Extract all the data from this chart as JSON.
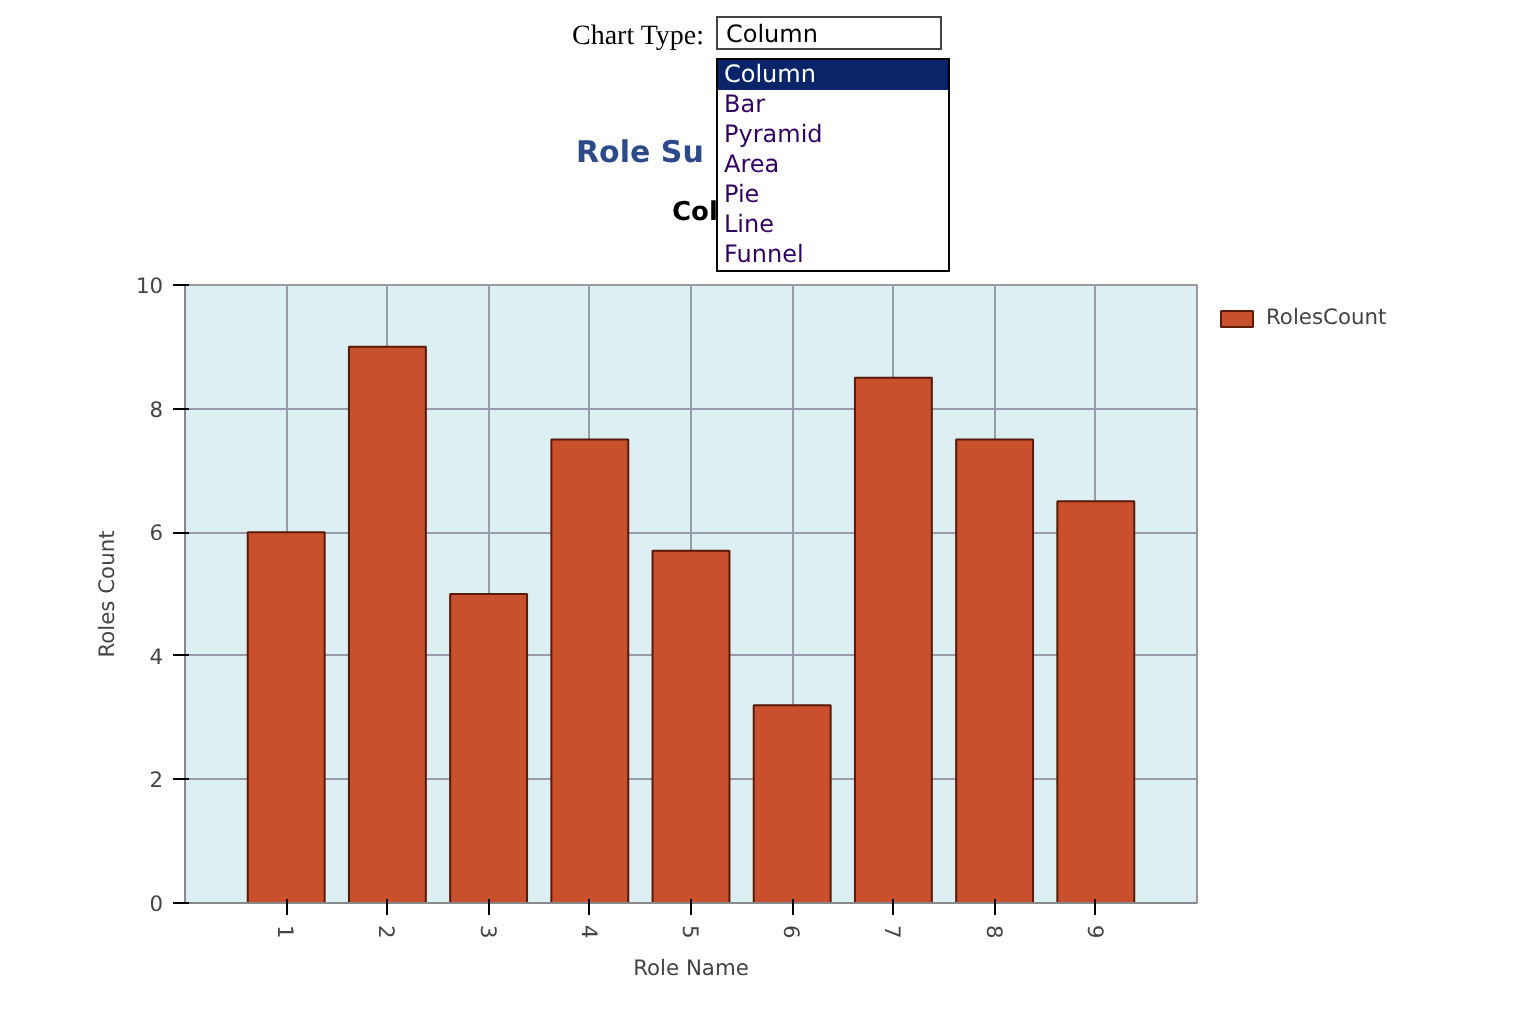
{
  "chart_data": {
    "type": "bar",
    "title": "Role Su",
    "subtitle": "Col",
    "xlabel": "Role Name",
    "ylabel": "Roles Count",
    "categories": [
      "1",
      "2",
      "3",
      "4",
      "5",
      "6",
      "7",
      "8",
      "9"
    ],
    "series": [
      {
        "name": "RolesCount",
        "color": "#c9502c",
        "values": [
          6,
          9,
          5,
          7.5,
          5.7,
          3.2,
          8.5,
          7.5,
          6.5
        ]
      }
    ],
    "ylim": [
      0,
      10
    ],
    "yticks": [
      0,
      2,
      4,
      6,
      8,
      10
    ],
    "grid": true,
    "legend": "top right",
    "annotations": [
      "Chart Type:",
      "Column",
      "Column",
      "Bar",
      "Pyramid",
      "Area",
      "Pie",
      "Line",
      "Funnel"
    ]
  }
}
